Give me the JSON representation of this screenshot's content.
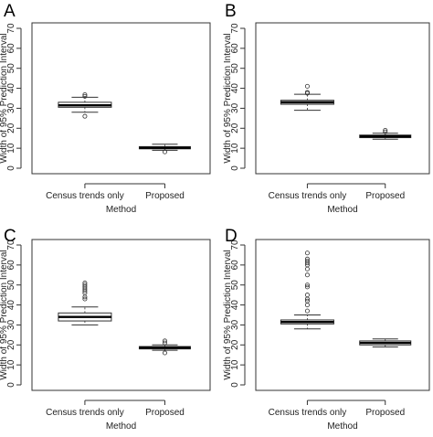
{
  "chart_data": [
    {
      "panel": "A",
      "type": "box",
      "xlabel": "Method",
      "ylabel": "Width of 95% Prediction Interval",
      "ylim": [
        0,
        70
      ],
      "yticks": [
        0,
        10,
        20,
        30,
        40,
        50,
        60,
        70
      ],
      "categories": [
        "Census trends only",
        "Proposed"
      ],
      "boxes": [
        {
          "category": "Census trends only",
          "whisker_low": 28,
          "q1": 30.5,
          "median": 31.5,
          "q3": 33,
          "whisker_high": 35.5,
          "outliers": [
            36,
            36.8,
            26
          ]
        },
        {
          "category": "Proposed",
          "whisker_low": 9,
          "q1": 9.7,
          "median": 10.2,
          "q3": 10.8,
          "whisker_high": 12,
          "outliers": [
            8.2
          ]
        }
      ]
    },
    {
      "panel": "B",
      "type": "box",
      "xlabel": "Method",
      "ylabel": "Width of 95% Prediction Interval",
      "ylim": [
        0,
        70
      ],
      "yticks": [
        0,
        10,
        20,
        30,
        40,
        50,
        60,
        70
      ],
      "categories": [
        "Census trends only",
        "Proposed"
      ],
      "boxes": [
        {
          "category": "Census trends only",
          "whisker_low": 29,
          "q1": 32,
          "median": 33,
          "q3": 34,
          "whisker_high": 37,
          "outliers": [
            37.5,
            38,
            41
          ]
        },
        {
          "category": "Proposed",
          "whisker_low": 14.5,
          "q1": 15.3,
          "median": 15.9,
          "q3": 16.6,
          "whisker_high": 17.5,
          "outliers": [
            18.2,
            19
          ]
        }
      ]
    },
    {
      "panel": "C",
      "type": "box",
      "xlabel": "Method",
      "ylabel": "Width of 95% Prediction Interval",
      "ylim": [
        0,
        70
      ],
      "yticks": [
        0,
        10,
        20,
        30,
        40,
        50,
        60,
        70
      ],
      "categories": [
        "Census trends only",
        "Proposed"
      ],
      "boxes": [
        {
          "category": "Census trends only",
          "whisker_low": 30,
          "q1": 32,
          "median": 34,
          "q3": 36,
          "whisker_high": 39,
          "outliers": [
            43,
            44,
            46,
            47,
            48,
            49,
            50,
            51
          ]
        },
        {
          "category": "Proposed",
          "whisker_low": 17.3,
          "q1": 18,
          "median": 18.6,
          "q3": 19.2,
          "whisker_high": 20,
          "outliers": [
            16,
            21,
            22
          ]
        }
      ]
    },
    {
      "panel": "D",
      "type": "box",
      "xlabel": "Method",
      "ylabel": "Width of 95% Prediction Interval",
      "ylim": [
        0,
        70
      ],
      "yticks": [
        0,
        10,
        20,
        30,
        40,
        50,
        60,
        70
      ],
      "categories": [
        "Census trends only",
        "Proposed"
      ],
      "boxes": [
        {
          "category": "Census trends only",
          "whisker_low": 28,
          "q1": 30.5,
          "median": 31.5,
          "q3": 32.5,
          "whisker_high": 35,
          "outliers": [
            37,
            40,
            42,
            43,
            45,
            49,
            50,
            55,
            58,
            60,
            61,
            62,
            63,
            66
          ]
        },
        {
          "category": "Proposed",
          "whisker_low": 19,
          "q1": 20,
          "median": 21,
          "q3": 22,
          "whisker_high": 23,
          "outliers": []
        }
      ]
    }
  ]
}
